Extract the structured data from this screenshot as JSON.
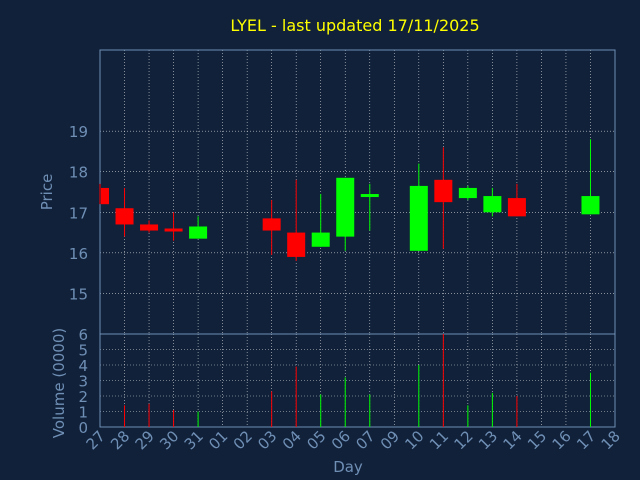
{
  "chart_data": [
    {
      "type": "candlestick",
      "title": "LYEL - last updated 17/11/2025",
      "ylabel": "Price",
      "ylim": [
        14,
        21
      ],
      "yticks": [
        15,
        16,
        17,
        18,
        19
      ],
      "grid": true,
      "colors": {
        "up": "#00ff00",
        "down": "#ff0000",
        "title": "#ffff00",
        "axis_text": "#6f8fb5",
        "background": "#11213a",
        "grid": "#ffffff"
      },
      "x_ticks": [
        "27",
        "28",
        "29",
        "30",
        "31",
        "01",
        "02",
        "03",
        "04",
        "05",
        "06",
        "07",
        "09",
        "10",
        "11",
        "12",
        "13",
        "14",
        "15",
        "16",
        "17",
        "18"
      ],
      "candles": [
        {
          "day": "27",
          "open": 17.6,
          "high": 17.7,
          "low": 17.2,
          "close": 17.2
        },
        {
          "day": "28",
          "open": 17.1,
          "high": 17.6,
          "low": 16.4,
          "close": 16.7
        },
        {
          "day": "29",
          "open": 16.7,
          "high": 16.8,
          "low": 16.5,
          "close": 16.55
        },
        {
          "day": "30",
          "open": 16.6,
          "high": 17.0,
          "low": 16.3,
          "close": 16.55
        },
        {
          "day": "31",
          "open": 16.35,
          "high": 16.9,
          "low": 16.35,
          "close": 16.65
        },
        {
          "day": "03",
          "open": 16.85,
          "high": 17.3,
          "low": 15.95,
          "close": 16.55
        },
        {
          "day": "04",
          "open": 16.5,
          "high": 17.8,
          "low": 15.8,
          "close": 15.9
        },
        {
          "day": "05",
          "open": 16.15,
          "high": 17.45,
          "low": 16.15,
          "close": 16.5
        },
        {
          "day": "06",
          "open": 16.4,
          "high": 17.85,
          "low": 16.05,
          "close": 17.85
        },
        {
          "day": "07",
          "open": 17.4,
          "high": 17.7,
          "low": 16.55,
          "close": 17.45
        },
        {
          "day": "10",
          "open": 16.05,
          "high": 18.2,
          "low": 16.05,
          "close": 17.65
        },
        {
          "day": "11",
          "open": 17.8,
          "high": 18.6,
          "low": 16.1,
          "close": 17.25
        },
        {
          "day": "12",
          "open": 17.35,
          "high": 17.65,
          "low": 17.3,
          "close": 17.6
        },
        {
          "day": "13",
          "open": 17.0,
          "high": 17.6,
          "low": 16.9,
          "close": 17.4
        },
        {
          "day": "14",
          "open": 17.35,
          "high": 17.7,
          "low": 16.9,
          "close": 16.9
        },
        {
          "day": "17",
          "open": 16.95,
          "high": 18.8,
          "low": 16.95,
          "close": 17.4
        }
      ]
    },
    {
      "type": "bar",
      "ylabel": "Volume (0000)",
      "xlabel": "Day",
      "ylim": [
        0,
        6
      ],
      "yticks": [
        0,
        1,
        2,
        3,
        4,
        5,
        6
      ],
      "categories": [
        "27",
        "28",
        "29",
        "30",
        "31",
        "01",
        "02",
        "03",
        "04",
        "05",
        "06",
        "07",
        "09",
        "10",
        "11",
        "12",
        "13",
        "14",
        "15",
        "16",
        "17",
        "18"
      ],
      "bars": [
        {
          "day": "28",
          "value": 1.4,
          "color": "#ff0000"
        },
        {
          "day": "29",
          "value": 1.5,
          "color": "#ff0000"
        },
        {
          "day": "30",
          "value": 1.1,
          "color": "#ff0000"
        },
        {
          "day": "31",
          "value": 1.0,
          "color": "#00ff00"
        },
        {
          "day": "03",
          "value": 2.3,
          "color": "#ff0000"
        },
        {
          "day": "04",
          "value": 3.9,
          "color": "#ff0000"
        },
        {
          "day": "05",
          "value": 2.1,
          "color": "#00ff00"
        },
        {
          "day": "06",
          "value": 3.2,
          "color": "#00ff00"
        },
        {
          "day": "07",
          "value": 2.1,
          "color": "#00ff00"
        },
        {
          "day": "10",
          "value": 4.0,
          "color": "#00ff00"
        },
        {
          "day": "11",
          "value": 6.0,
          "color": "#ff0000"
        },
        {
          "day": "12",
          "value": 1.4,
          "color": "#00ff00"
        },
        {
          "day": "13",
          "value": 2.2,
          "color": "#00ff00"
        },
        {
          "day": "14",
          "value": 2.0,
          "color": "#ff0000"
        },
        {
          "day": "17",
          "value": 3.5,
          "color": "#00ff00"
        }
      ]
    }
  ]
}
